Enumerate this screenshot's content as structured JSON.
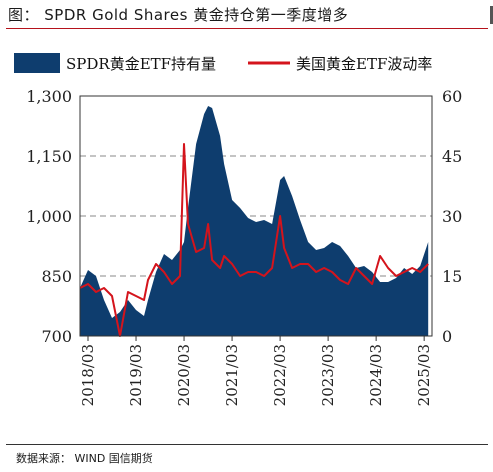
{
  "header": {
    "title": "图：  SPDR Gold Shares  黄金持仓第一季度增多"
  },
  "footer": {
    "source": "数据来源：  WIND  国信期货"
  },
  "colors": {
    "area": "#0e3d6e",
    "line": "#d4141c",
    "grid": "#888888",
    "accent": "#b5121b"
  },
  "chart_data": {
    "type": "area",
    "title": "",
    "xlabel": "",
    "ylabel": "",
    "ylabel_right": "",
    "legend_position": "top",
    "grid": true,
    "ylim": [
      700,
      1300
    ],
    "y2lim": [
      0,
      60
    ],
    "yticks": [
      "1,300",
      "1,150",
      "1,000",
      "850",
      "700"
    ],
    "y2ticks": [
      "60",
      "45",
      "30",
      "15",
      "0"
    ],
    "xticks": [
      "2018/03",
      "2019/03",
      "2020/03",
      "2021/03",
      "2022/03",
      "2023/03",
      "2024/03",
      "2025/03"
    ],
    "series": [
      {
        "name": "SPDR黄金ETF持有量",
        "axis": "left",
        "type": "area",
        "x": [
          "2018-01",
          "2018-03",
          "2018-05",
          "2018-07",
          "2018-09",
          "2018-11",
          "2019-01",
          "2019-03",
          "2019-05",
          "2019-06",
          "2019-08",
          "2019-10",
          "2019-12",
          "2020-02",
          "2020-03",
          "2020-04",
          "2020-06",
          "2020-08",
          "2020-09",
          "2020-10",
          "2020-12",
          "2021-01",
          "2021-03",
          "2021-05",
          "2021-07",
          "2021-09",
          "2021-11",
          "2022-01",
          "2022-03",
          "2022-04",
          "2022-06",
          "2022-08",
          "2022-10",
          "2022-12",
          "2023-02",
          "2023-04",
          "2023-06",
          "2023-08",
          "2023-10",
          "2023-12",
          "2024-02",
          "2024-04",
          "2024-06",
          "2024-08",
          "2024-10",
          "2024-12",
          "2025-02",
          "2025-04"
        ],
        "values": [
          820,
          865,
          850,
          790,
          745,
          760,
          790,
          765,
          750,
          790,
          860,
          905,
          890,
          915,
          935,
          1020,
          1180,
          1255,
          1275,
          1270,
          1200,
          1130,
          1040,
          1020,
          995,
          985,
          990,
          980,
          1090,
          1100,
          1050,
          990,
          935,
          915,
          920,
          935,
          925,
          900,
          870,
          875,
          860,
          835,
          835,
          845,
          870,
          855,
          875,
          935
        ]
      },
      {
        "name": "美国黄金ETF波动率",
        "axis": "right",
        "type": "line",
        "x": [
          "2018-01",
          "2018-03",
          "2018-05",
          "2018-07",
          "2018-09",
          "2018-11",
          "2019-01",
          "2019-03",
          "2019-05",
          "2019-06",
          "2019-08",
          "2019-10",
          "2019-12",
          "2020-02",
          "2020-03",
          "2020-04",
          "2020-06",
          "2020-08",
          "2020-09",
          "2020-10",
          "2020-12",
          "2021-01",
          "2021-03",
          "2021-05",
          "2021-07",
          "2021-09",
          "2021-11",
          "2022-01",
          "2022-03",
          "2022-04",
          "2022-06",
          "2022-08",
          "2022-10",
          "2022-12",
          "2023-02",
          "2023-04",
          "2023-06",
          "2023-08",
          "2023-10",
          "2023-12",
          "2024-02",
          "2024-04",
          "2024-06",
          "2024-08",
          "2024-10",
          "2024-12",
          "2025-02",
          "2025-04"
        ],
        "values": [
          12,
          13,
          11,
          12,
          10,
          0,
          11,
          10,
          9,
          14,
          18,
          16,
          13,
          15,
          48,
          28,
          21,
          22,
          28,
          19,
          17,
          20,
          18,
          15,
          16,
          16,
          15,
          17,
          30,
          22,
          17,
          18,
          18,
          16,
          17,
          16,
          14,
          13,
          17,
          15,
          13,
          20,
          17,
          15,
          16,
          17,
          16,
          18
        ]
      }
    ]
  }
}
